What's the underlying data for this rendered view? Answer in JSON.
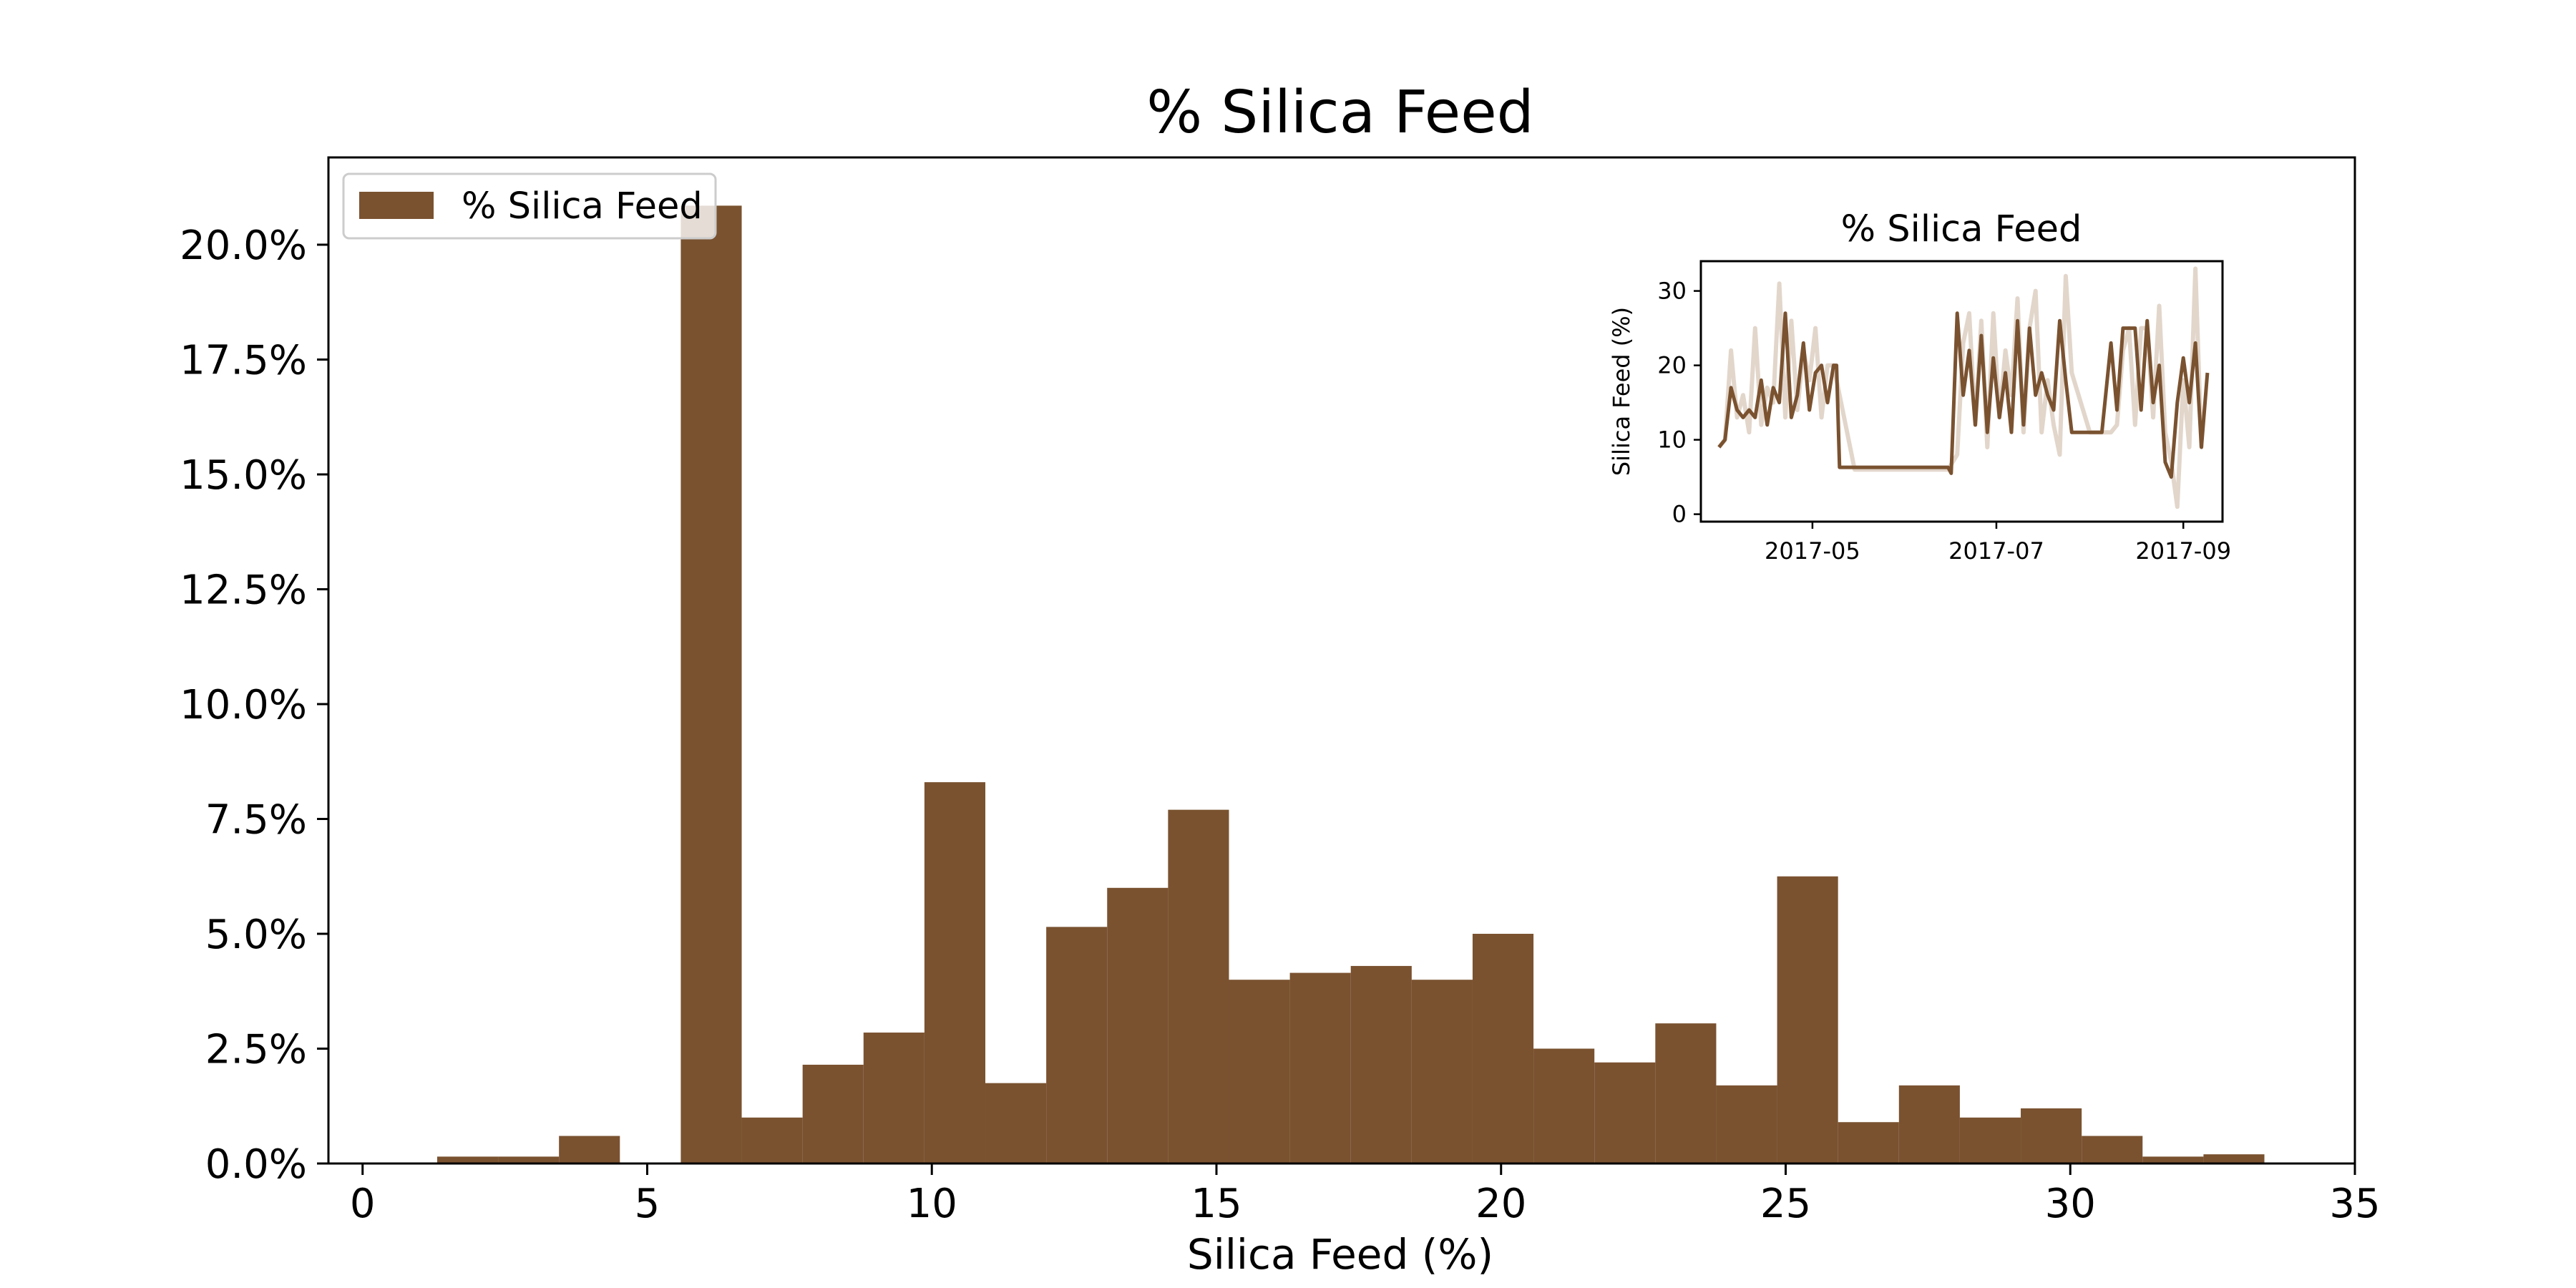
{
  "colors": {
    "bar": "#7a5230",
    "line": "#7a5230",
    "raw_line": "#e2d6cb",
    "axis": "#000000",
    "background": "#ffffff"
  },
  "chart_data": [
    {
      "type": "bar",
      "title": "% Silica Feed",
      "xlabel": "Silica Feed (%)",
      "ylabel": "",
      "xlim": [
        -0.6,
        35
      ],
      "ylim": [
        0,
        21.9
      ],
      "xticks": [
        0,
        5,
        10,
        15,
        20,
        25,
        30,
        35
      ],
      "yticks": [
        0,
        2.5,
        5,
        7.5,
        10,
        12.5,
        15,
        17.5,
        20
      ],
      "ytick_format": "percent_1dp",
      "legend": {
        "position": "top-left",
        "entries": [
          "% Silica Feed"
        ]
      },
      "grid": false,
      "bin_edges": [
        1.31,
        2.38,
        3.45,
        4.52,
        5.59,
        6.66,
        7.73,
        8.8,
        9.87,
        10.94,
        12.01,
        13.08,
        14.15,
        15.22,
        16.29,
        17.36,
        18.43,
        19.5,
        20.57,
        21.64,
        22.71,
        23.78,
        24.85,
        25.92,
        26.99,
        28.06,
        29.13,
        30.2,
        31.27,
        32.34,
        33.41
      ],
      "values": [
        0.15,
        0.15,
        0.6,
        0.0,
        20.85,
        1.0,
        2.15,
        2.85,
        8.3,
        1.75,
        5.15,
        6.0,
        7.7,
        4.0,
        4.15,
        4.3,
        4.0,
        5.0,
        2.5,
        2.2,
        3.05,
        1.7,
        6.25,
        0.9,
        1.7,
        1.0,
        1.2,
        0.6,
        0.15,
        0.2
      ]
    },
    {
      "type": "line",
      "title": "% Silica Feed",
      "xlabel": "",
      "ylabel": "Silica Feed (%)",
      "xlim": [
        "2017-03-25",
        "2017-09-14"
      ],
      "ylim": [
        -1,
        34
      ],
      "xticks": [
        "2017-05",
        "2017-07",
        "2017-09"
      ],
      "yticks": [
        0,
        10,
        20,
        30
      ],
      "legend": null,
      "grid": false,
      "series": [
        {
          "name": "",
          "style": "raw",
          "x": [
            "2017-03-31",
            "2017-04-02",
            "2017-04-04",
            "2017-04-06",
            "2017-04-08",
            "2017-04-10",
            "2017-04-12",
            "2017-04-14",
            "2017-04-16",
            "2017-04-18",
            "2017-04-20",
            "2017-04-22",
            "2017-04-24",
            "2017-04-26",
            "2017-04-28",
            "2017-04-30",
            "2017-05-02",
            "2017-05-04",
            "2017-05-06",
            "2017-05-08",
            "2017-05-15",
            "2017-06-01",
            "2017-06-15",
            "2017-06-18",
            "2017-06-20",
            "2017-06-22",
            "2017-06-24",
            "2017-06-26",
            "2017-06-28",
            "2017-06-30",
            "2017-07-02",
            "2017-07-04",
            "2017-07-06",
            "2017-07-08",
            "2017-07-10",
            "2017-07-12",
            "2017-07-14",
            "2017-07-16",
            "2017-07-18",
            "2017-07-20",
            "2017-07-22",
            "2017-07-24",
            "2017-07-26",
            "2017-08-01",
            "2017-08-08",
            "2017-08-10",
            "2017-08-12",
            "2017-08-14",
            "2017-08-16",
            "2017-08-18",
            "2017-08-20",
            "2017-08-22",
            "2017-08-24",
            "2017-08-26",
            "2017-08-28",
            "2017-08-30",
            "2017-09-01",
            "2017-09-03",
            "2017-09-05",
            "2017-09-07"
          ],
          "values": [
            9,
            10,
            22,
            13,
            16,
            11,
            25,
            12,
            17,
            15,
            31,
            13,
            26,
            14,
            22,
            18,
            25,
            13,
            20,
            20,
            6,
            6,
            6,
            8,
            23,
            27,
            12,
            26,
            9,
            27,
            13,
            22,
            16,
            29,
            11,
            25,
            30,
            11,
            18,
            12,
            8,
            32,
            19,
            11,
            11,
            12,
            22,
            25,
            12,
            25,
            25,
            13,
            28,
            11,
            7,
            1,
            18,
            9,
            33,
            9
          ]
        },
        {
          "name": "",
          "style": "smoothed",
          "x": [
            "2017-03-31",
            "2017-04-02",
            "2017-04-04",
            "2017-04-06",
            "2017-04-08",
            "2017-04-10",
            "2017-04-12",
            "2017-04-14",
            "2017-04-16",
            "2017-04-18",
            "2017-04-20",
            "2017-04-22",
            "2017-04-24",
            "2017-04-26",
            "2017-04-28",
            "2017-04-30",
            "2017-05-02",
            "2017-05-04",
            "2017-05-06",
            "2017-05-08",
            "2017-05-09",
            "2017-05-10",
            "2017-06-15",
            "2017-06-16",
            "2017-06-18",
            "2017-06-20",
            "2017-06-22",
            "2017-06-24",
            "2017-06-26",
            "2017-06-28",
            "2017-06-30",
            "2017-07-02",
            "2017-07-04",
            "2017-07-06",
            "2017-07-08",
            "2017-07-10",
            "2017-07-12",
            "2017-07-14",
            "2017-07-16",
            "2017-07-18",
            "2017-07-20",
            "2017-07-22",
            "2017-07-24",
            "2017-07-26",
            "2017-07-28",
            "2017-08-01",
            "2017-08-05",
            "2017-08-08",
            "2017-08-10",
            "2017-08-12",
            "2017-08-14",
            "2017-08-16",
            "2017-08-18",
            "2017-08-20",
            "2017-08-22",
            "2017-08-24",
            "2017-08-26",
            "2017-08-28",
            "2017-08-30",
            "2017-09-01",
            "2017-09-03",
            "2017-09-05",
            "2017-09-07",
            "2017-09-09"
          ],
          "values": [
            9,
            10,
            17,
            14,
            13,
            14,
            13,
            18,
            12,
            17,
            15,
            27,
            13,
            16,
            23,
            14,
            19,
            20,
            15,
            20,
            20,
            6.3,
            6.3,
            5.5,
            27,
            16,
            22,
            12,
            24,
            11,
            21,
            13,
            19,
            11,
            26,
            12,
            25,
            16,
            19,
            16,
            14,
            26,
            18,
            11,
            11,
            11,
            11,
            23,
            14,
            25,
            25,
            25,
            14,
            26,
            15,
            20,
            7,
            5,
            15,
            21,
            15,
            23,
            9,
            19
          ]
        }
      ]
    }
  ]
}
